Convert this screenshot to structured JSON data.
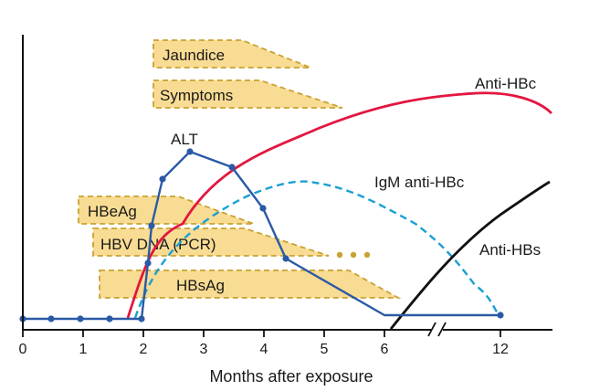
{
  "axis": {
    "x_title": "Months after exposure",
    "ticks": [
      {
        "value": 0,
        "label": "0"
      },
      {
        "value": 1,
        "label": "1"
      },
      {
        "value": 2,
        "label": "2"
      },
      {
        "value": 3,
        "label": "3"
      },
      {
        "value": 4,
        "label": "4"
      },
      {
        "value": 5,
        "label": "5"
      },
      {
        "value": 6,
        "label": "6"
      },
      {
        "value": 12,
        "label": "12"
      }
    ],
    "axis_break_after": 6
  },
  "bands": {
    "jaundice": "Jaundice",
    "symptoms": "Symptoms",
    "hbeag": "HBeAg",
    "hbv_dna": "HBV DNA (PCR)",
    "hbsag": "HBsAg"
  },
  "curves": {
    "alt": {
      "label": "ALT",
      "color": "#2a5aa6"
    },
    "anti_hbc": {
      "label": "Anti-HBc",
      "color": "#e3163f"
    },
    "igm_anti_hbc": {
      "label": "IgM anti-HBc",
      "color": "#1ba0d2"
    },
    "anti_hbs": {
      "label": "Anti-HBs",
      "color": "#111111"
    }
  },
  "colors": {
    "band_fill": "#f9dc93",
    "band_border": "#c8a233",
    "dots": "#c8a233"
  }
}
